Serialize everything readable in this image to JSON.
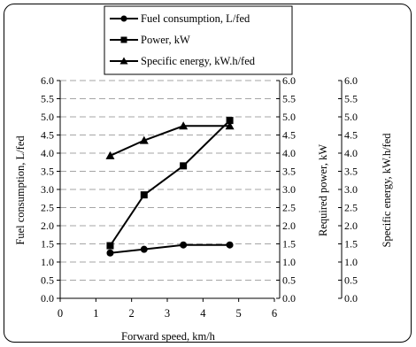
{
  "chart_data": {
    "type": "line",
    "title": "",
    "xlabel": "Forward speed, km/h",
    "xlim": [
      0,
      6
    ],
    "x_ticks": [
      "0",
      "1",
      "2",
      "3",
      "4",
      "5",
      "6"
    ],
    "y_axes": [
      {
        "label": "Fuel consumption, L/fed",
        "ylim": [
          0,
          6
        ],
        "ticks": [
          "0.0",
          "0.5",
          "1.0",
          "1.5",
          "2.0",
          "2.5",
          "3.0",
          "3.5",
          "4.0",
          "4.5",
          "5.0",
          "5.5",
          "6.0"
        ]
      },
      {
        "label": "Required power, kW",
        "ylim": [
          0,
          6
        ],
        "ticks": [
          "0.0",
          "0.5",
          "1.0",
          "1.5",
          "2.0",
          "2.5",
          "3.0",
          "3.5",
          "4.0",
          "4.5",
          "5.0",
          "5.5",
          "6.0"
        ]
      },
      {
        "label": "Specific energy, kW.h/fed",
        "ylim": [
          0,
          6
        ],
        "ticks": [
          "0.0",
          "0.5",
          "1.0",
          "1.5",
          "2.0",
          "2.5",
          "3.0",
          "3.5",
          "4.0",
          "4.5",
          "5.0",
          "5.5",
          "6.0"
        ]
      }
    ],
    "grid": "horizontal-dashed",
    "legend_position": "top",
    "series": [
      {
        "name": "Fuel consumption, L/fed",
        "marker": "circle",
        "x": [
          1.4,
          2.35,
          3.45,
          4.75
        ],
        "y": [
          1.25,
          1.35,
          1.47,
          1.47
        ]
      },
      {
        "name": "Power, kW",
        "marker": "square",
        "x": [
          1.4,
          2.35,
          3.45,
          4.75
        ],
        "y": [
          1.45,
          2.85,
          3.65,
          4.9
        ]
      },
      {
        "name": "Specific energy, kW.h/fed",
        "marker": "triangle",
        "x": [
          1.4,
          2.35,
          3.45,
          4.75
        ],
        "y": [
          3.93,
          4.35,
          4.75,
          4.75
        ]
      }
    ]
  }
}
